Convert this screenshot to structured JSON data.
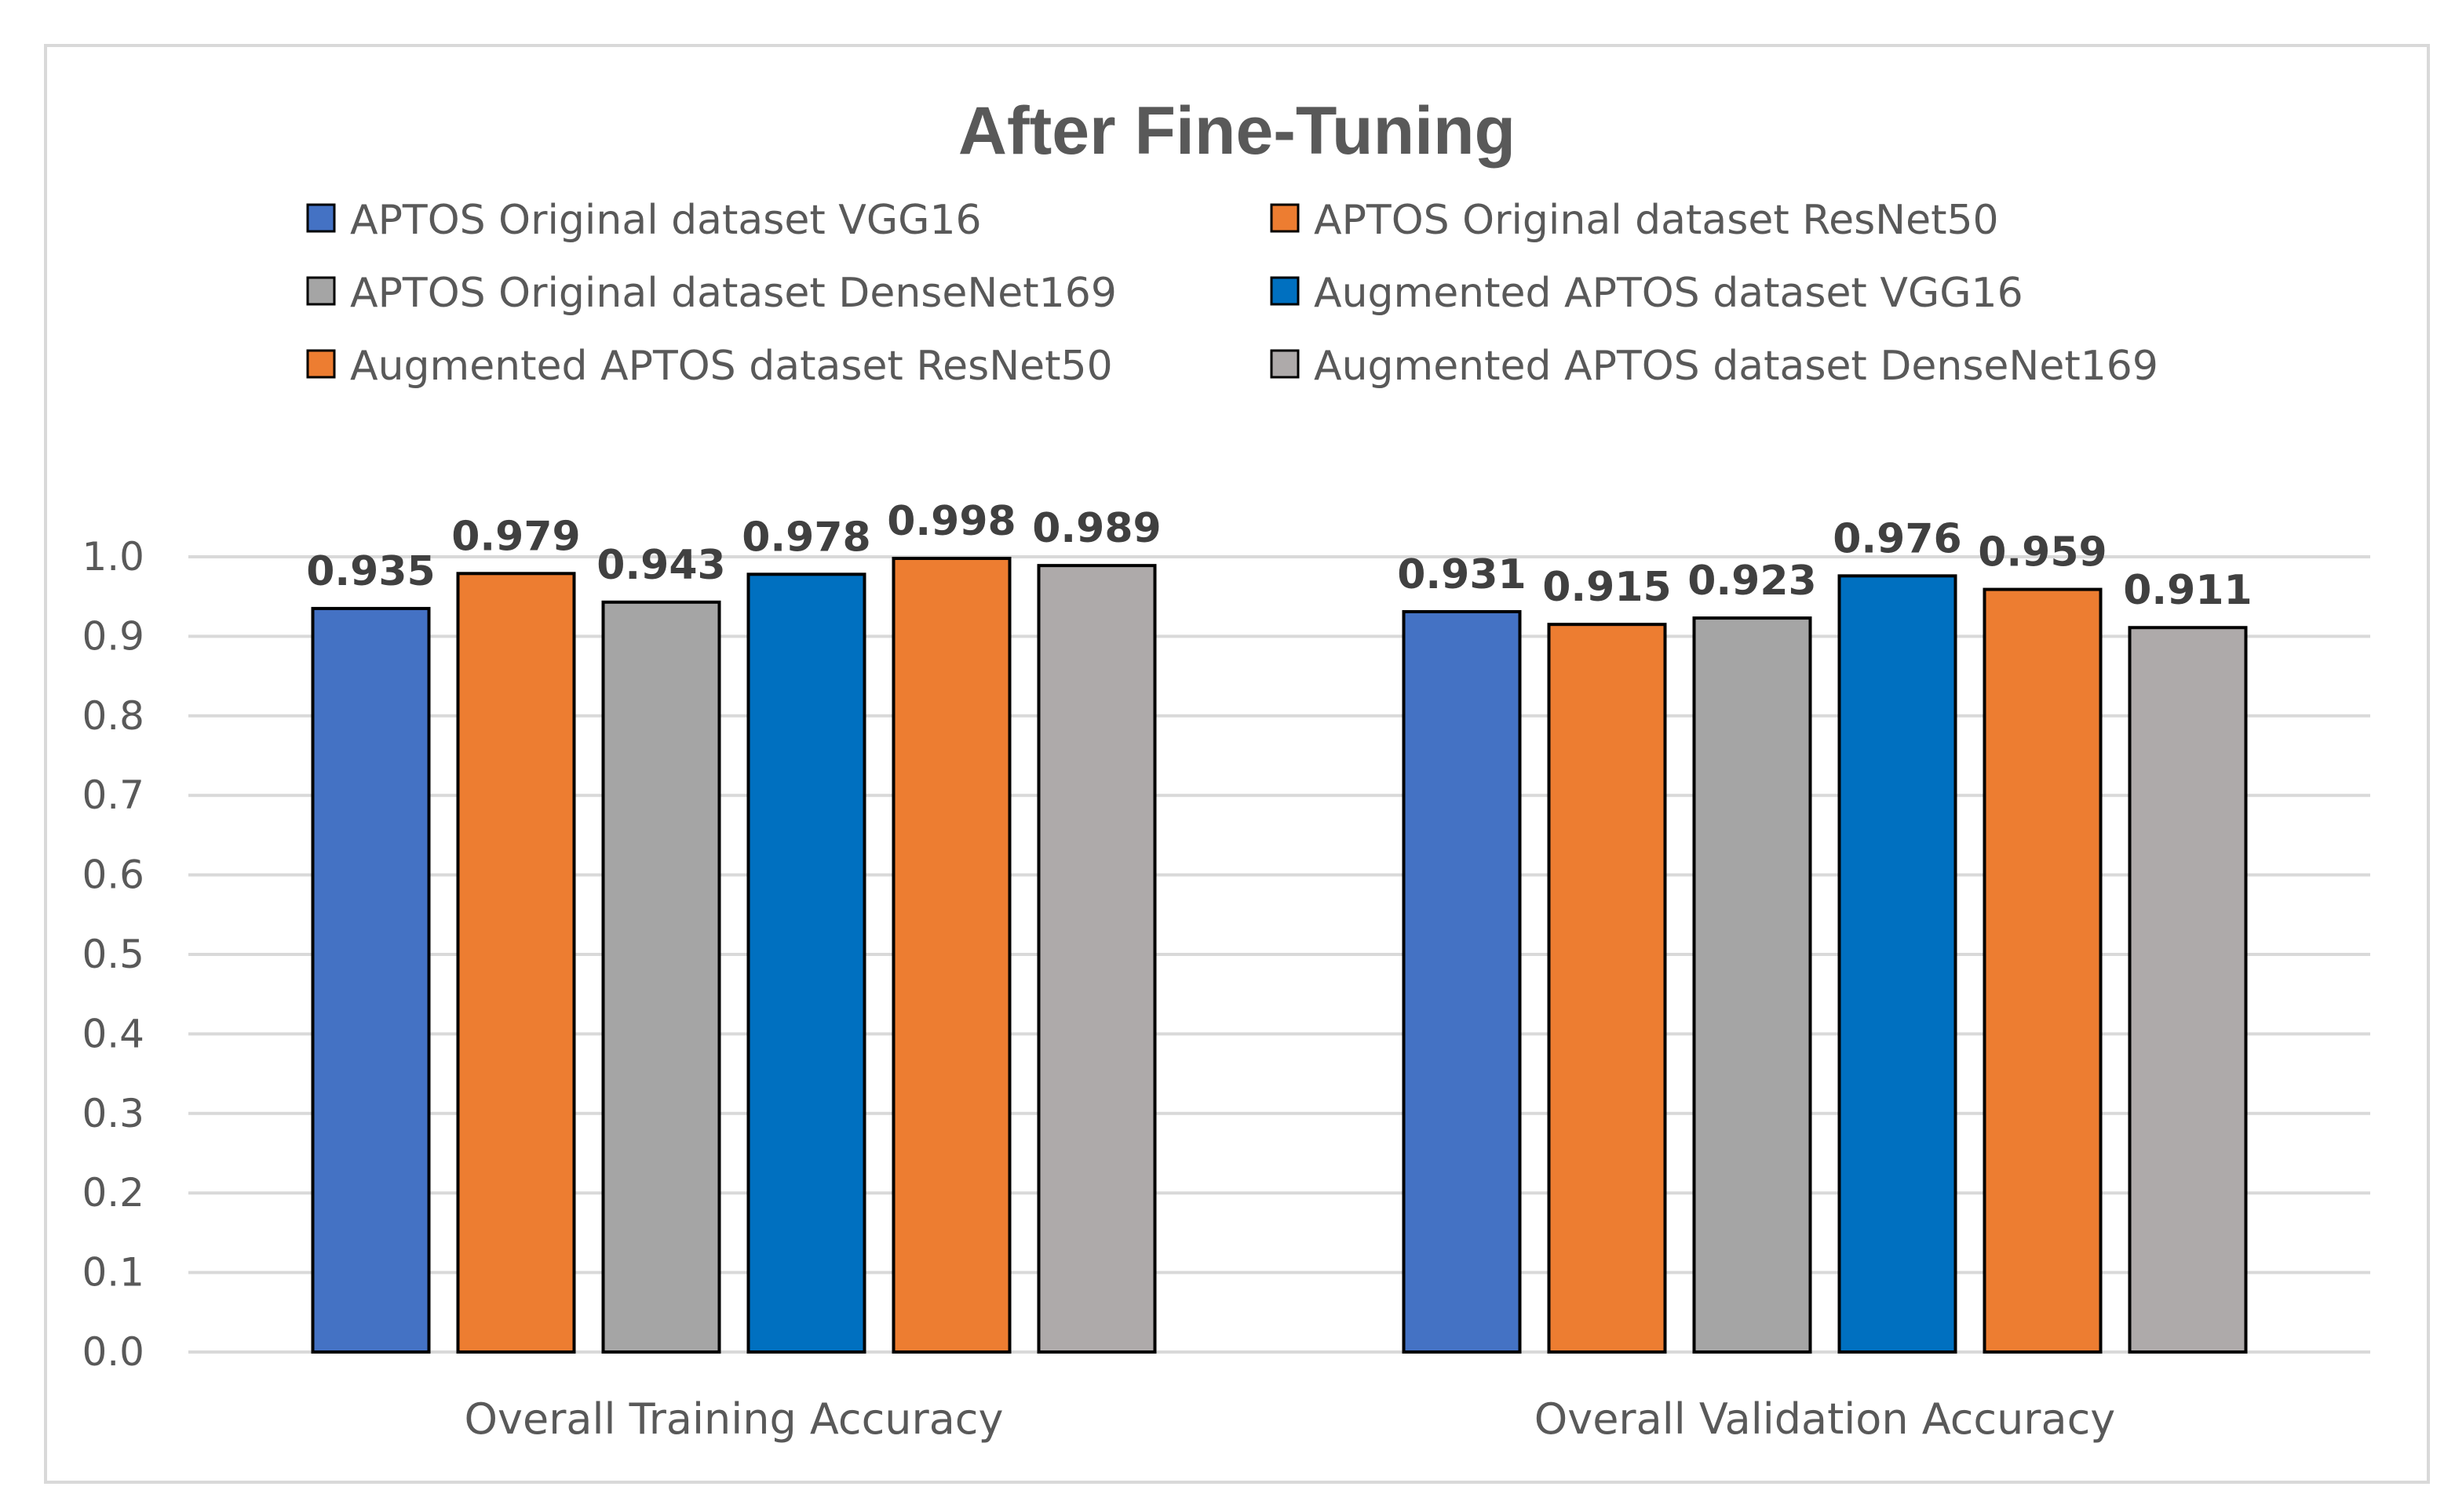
{
  "chart_data": {
    "type": "bar",
    "title": "After Fine-Tuning",
    "categories": [
      "Overall Training Accuracy",
      "Overall Validation Accuracy"
    ],
    "series": [
      {
        "name": "APTOS Original dataset VGG16",
        "color": "#4472C4",
        "values": [
          0.935,
          0.931
        ]
      },
      {
        "name": "APTOS Original dataset ResNet50",
        "color": "#ED7D31",
        "values": [
          0.979,
          0.915
        ]
      },
      {
        "name": "APTOS Original dataset DenseNet169",
        "color": "#A5A5A5",
        "values": [
          0.943,
          0.923
        ]
      },
      {
        "name": "Augmented APTOS dataset VGG16",
        "color": "#0070C0",
        "values": [
          0.978,
          0.976
        ]
      },
      {
        "name": "Augmented APTOS dataset ResNet50",
        "color": "#ED7D31",
        "values": [
          0.998,
          0.959
        ]
      },
      {
        "name": "Augmented APTOS dataset DenseNet169",
        "color": "#AEAAAA",
        "values": [
          0.989,
          0.911
        ]
      }
    ],
    "ylim": [
      0.0,
      1.0
    ],
    "yticks": [
      "0.0",
      "0.1",
      "0.2",
      "0.3",
      "0.4",
      "0.5",
      "0.6",
      "0.7",
      "0.8",
      "0.9",
      "1.0"
    ],
    "xlabel": "",
    "ylabel": "",
    "grid": true,
    "legend_position": "top"
  }
}
